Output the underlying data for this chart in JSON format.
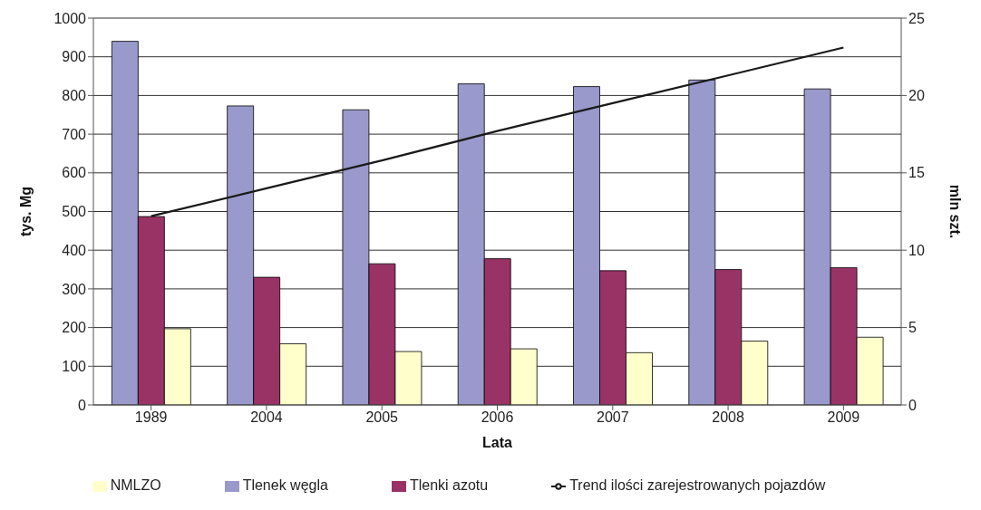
{
  "chart_data": {
    "type": "bar",
    "xlabel": "Lata",
    "ylabel": "tys. Mg",
    "y2label": "mln szt.",
    "categories": [
      "1989",
      "2004",
      "2005",
      "2006",
      "2007",
      "2008",
      "2009"
    ],
    "series": [
      {
        "name": "Tlenek węgla",
        "color": "#9999cc",
        "values": [
          940,
          773,
          763,
          830,
          823,
          840,
          817
        ]
      },
      {
        "name": "Tlenki azotu",
        "color": "#993366",
        "values": [
          487,
          330,
          365,
          378,
          347,
          350,
          355
        ]
      },
      {
        "name": "NMLZO",
        "color": "#ffffcc",
        "values": [
          197,
          158,
          138,
          145,
          135,
          165,
          175
        ]
      },
      {
        "name": "Trend ilości zarejestrowanych pojazdów",
        "type": "line",
        "axis": "y2",
        "color": "#1a1a1a",
        "values": [
          12.2,
          14.0,
          15.8,
          17.7,
          19.5,
          21.3,
          23.1
        ]
      }
    ],
    "ylim": [
      0,
      1000
    ],
    "yticks": [
      0,
      100,
      200,
      300,
      400,
      500,
      600,
      700,
      800,
      900,
      1000
    ],
    "y2lim": [
      0,
      25
    ],
    "y2ticks": [
      0,
      5,
      10,
      15,
      20,
      25
    ],
    "grid": "y",
    "legend": "bottom",
    "marker": "none",
    "line_style": "solid"
  }
}
